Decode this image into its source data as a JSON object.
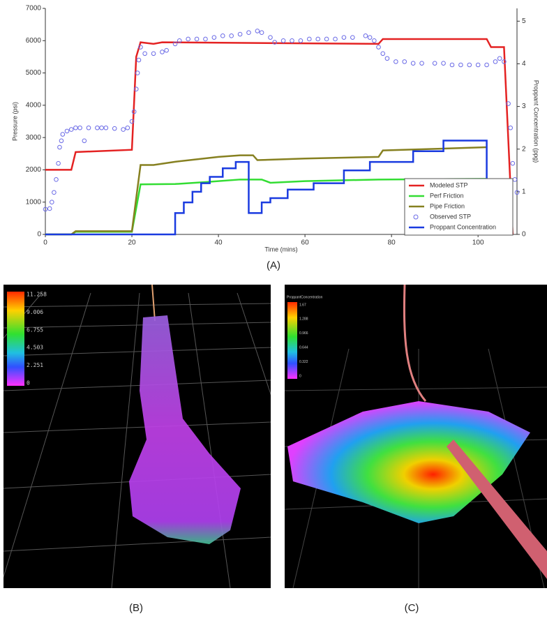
{
  "chart_data": {
    "type": "line",
    "x_label": "Time (mins)",
    "y_label": "Pressure (psi)",
    "y2_label": "Proppant Concentration (ppg)",
    "xlim": [
      0,
      109
    ],
    "xticks": [
      0,
      20,
      40,
      60,
      80,
      100
    ],
    "ylim": [
      0,
      7000
    ],
    "yticks": [
      0,
      1000,
      2000,
      3000,
      4000,
      5000,
      6000,
      7000
    ],
    "y2lim": [
      0,
      5.3
    ],
    "y2ticks": [
      0,
      1,
      2,
      3,
      4,
      5
    ],
    "grid": false,
    "legend": "lower right",
    "series": [
      {
        "name": "Modeled STP",
        "color": "#e42222",
        "marker": "none",
        "x": [
          0,
          6,
          7,
          20,
          21,
          22,
          25,
          27,
          77,
          78,
          102,
          103,
          106,
          108
        ],
        "values": [
          2000,
          2000,
          2550,
          2620,
          5500,
          5950,
          5900,
          5950,
          5900,
          6050,
          6050,
          5800,
          5800,
          0
        ]
      },
      {
        "name": "Perf Friction",
        "color": "#33dd33",
        "marker": "none",
        "x": [
          0,
          6,
          7,
          20,
          22,
          30,
          37,
          45,
          50,
          52,
          60,
          77,
          102
        ],
        "values": [
          0,
          0,
          80,
          80,
          1550,
          1560,
          1620,
          1700,
          1700,
          1600,
          1650,
          1700,
          1720
        ]
      },
      {
        "name": "Pipe Friction",
        "color": "#868020",
        "marker": "none",
        "x": [
          0,
          6,
          7,
          20,
          22,
          25,
          30,
          40,
          45,
          48,
          49,
          60,
          77,
          78,
          102
        ],
        "values": [
          0,
          0,
          100,
          100,
          2150,
          2150,
          2250,
          2400,
          2450,
          2450,
          2300,
          2350,
          2400,
          2600,
          2700
        ]
      },
      {
        "name": "Observed STP",
        "color": "#6a6ae6",
        "marker": "circle",
        "x": [
          0,
          1,
          1.5,
          2,
          2.5,
          3,
          3.3,
          3.7,
          4,
          5,
          6,
          7,
          8,
          9,
          10,
          12,
          13,
          14,
          16,
          18,
          19,
          20,
          20.5,
          21,
          21.3,
          21.6,
          22,
          23,
          25,
          27,
          28,
          30,
          31,
          33,
          35,
          37,
          39,
          41,
          43,
          45,
          47,
          49,
          50,
          52,
          53,
          55,
          57,
          59,
          61,
          63,
          65,
          67,
          69,
          71,
          74,
          75,
          76,
          77,
          78,
          79,
          81,
          83,
          85,
          87,
          90,
          92,
          94,
          96,
          98,
          100,
          102,
          104,
          105,
          106,
          107,
          107.5,
          108,
          108.5,
          109
        ],
        "values": [
          780,
          800,
          1000,
          1300,
          1700,
          2200,
          2700,
          2900,
          3100,
          3200,
          3250,
          3300,
          3300,
          2900,
          3300,
          3300,
          3300,
          3300,
          3280,
          3250,
          3300,
          3500,
          3800,
          4500,
          5000,
          5400,
          5800,
          5600,
          5600,
          5650,
          5700,
          5900,
          6000,
          6050,
          6050,
          6050,
          6100,
          6150,
          6150,
          6200,
          6250,
          6300,
          6250,
          6100,
          5950,
          6000,
          6000,
          6000,
          6050,
          6050,
          6050,
          6050,
          6100,
          6100,
          6150,
          6100,
          6000,
          5800,
          5600,
          5450,
          5350,
          5350,
          5300,
          5300,
          5300,
          5300,
          5250,
          5250,
          5250,
          5250,
          5250,
          5350,
          5450,
          5350,
          4050,
          3300,
          2200,
          1700,
          1300
        ]
      },
      {
        "name": "Proppant Concentration",
        "color": "#1a3be0",
        "marker": "none",
        "axis": "y2",
        "x": [
          0,
          30,
          30,
          32,
          32,
          34,
          34,
          36,
          36,
          38,
          38,
          41,
          41,
          44,
          44,
          47,
          47,
          50,
          50,
          52,
          52,
          56,
          56,
          62,
          62,
          69,
          69,
          75,
          75,
          85,
          85,
          92,
          92,
          102,
          102
        ],
        "values": [
          0,
          0,
          0.5,
          0.5,
          0.75,
          0.75,
          1.0,
          1.0,
          1.2,
          1.2,
          1.35,
          1.35,
          1.55,
          1.55,
          1.7,
          1.7,
          0.5,
          0.5,
          0.75,
          0.75,
          0.85,
          0.85,
          1.05,
          1.05,
          1.2,
          1.2,
          1.5,
          1.5,
          1.7,
          1.7,
          1.95,
          1.95,
          2.2,
          2.2,
          0
        ]
      }
    ]
  },
  "captions": {
    "a": "(A)",
    "b": "(B)",
    "c": "(C)"
  },
  "panel_b": {
    "colorbar_labels": [
      "11.258",
      "9.006",
      "6.755",
      "4.503",
      "2.251",
      "0"
    ]
  },
  "panel_c": {
    "colorbar_title": "ProppantConcentration",
    "colorbar_labels": [
      "1.67",
      "1.288",
      "0.966",
      "0.644",
      "0.322",
      "0"
    ]
  }
}
